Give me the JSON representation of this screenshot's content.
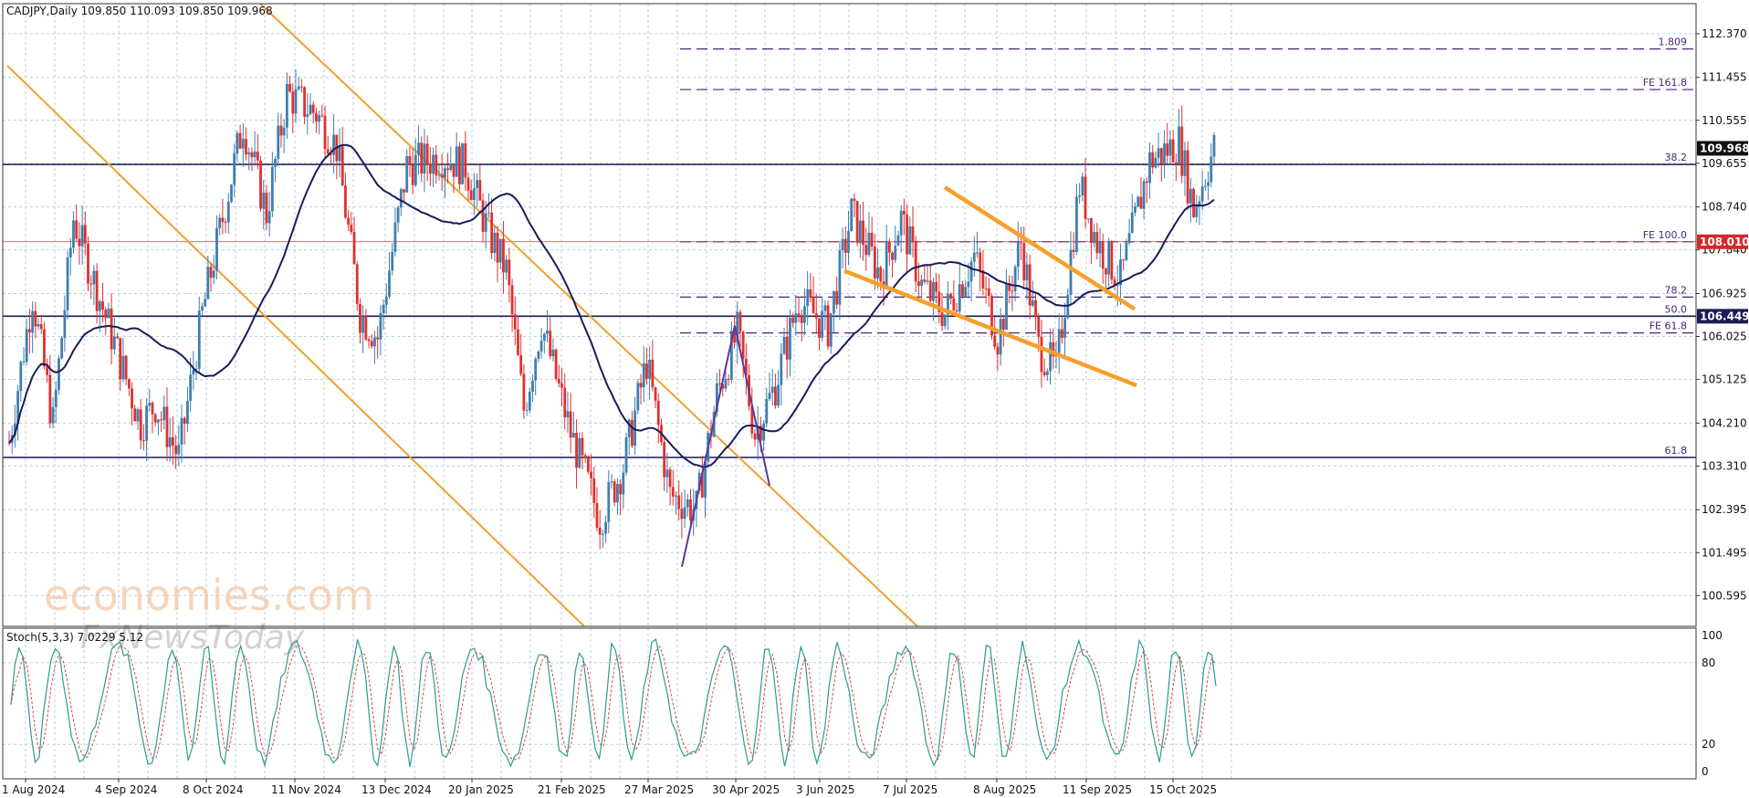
{
  "header": {
    "symbol_label": "CADJPY,Daily  109.850 110.093 109.850 109.968"
  },
  "indicator": {
    "label": "Stoch(5,3,3) 7.0229 5.12"
  },
  "watermark": {
    "brand": "economies.com",
    "sub": "FxNewsToday"
  },
  "colors": {
    "bull": "#3f7fae",
    "bear": "#e0302f",
    "ma": "#1d1b57",
    "channel": "#f0a030",
    "wedge": "#f5a02a",
    "fib": "#4a2573",
    "level": "#1a1a5a",
    "fe100_line": "#c84141",
    "grid": "#b8cfdd",
    "stoch_main": "#2e9b8e",
    "stoch_signal": "#d94848"
  },
  "chart_data": {
    "type": "candlestick",
    "symbol": "CADJPY",
    "timeframe": "Daily",
    "last_ohlc": {
      "open": 109.85,
      "high": 110.093,
      "low": 109.85,
      "close": 109.968
    },
    "ylim": [
      100.2,
      12.58
    ],
    "price_axis_ticks": [
      "112.370",
      "111.455",
      "110.555",
      "109.655",
      "108.740",
      "107.840",
      "106.925",
      "106.025",
      "105.125",
      "104.210",
      "103.310",
      "102.395",
      "101.495",
      "100.595"
    ],
    "time_axis_labels": [
      "1 Aug 2024",
      "4 Sep 2024",
      "8 Oct 2024",
      "11 Nov 2024",
      "13 Dec 2024",
      "20 Jan 2025",
      "21 Feb 2025",
      "27 Mar 2025",
      "30 Apr 2025",
      "3 Jun 2025",
      "7 Jul 2025",
      "8 Aug 2025",
      "11 Sep 2025",
      "15 Oct 2025"
    ],
    "price_tags": [
      {
        "label": "109.968",
        "value": 109.968,
        "style": "dark"
      },
      {
        "label": "108.010",
        "value": 108.01,
        "style": "red"
      },
      {
        "label": "106.449",
        "value": 106.449,
        "style": "navy"
      }
    ],
    "horizontal_levels": [
      {
        "value": 109.63,
        "label": "38.2",
        "style": "solid"
      },
      {
        "value": 106.449,
        "label": "50.0",
        "style": "solid"
      },
      {
        "value": 103.49,
        "label": "61.8",
        "style": "solid"
      }
    ],
    "fib_levels": [
      {
        "value": 112.05,
        "label": "1.809",
        "style": "dashed"
      },
      {
        "value": 111.2,
        "label": "FE 161.8",
        "style": "dashed"
      },
      {
        "value": 108.01,
        "label": "FE 100.0",
        "style": "dashed"
      },
      {
        "value": 106.85,
        "label": "78.2",
        "style": "dashed"
      },
      {
        "value": 106.1,
        "label": "FE 61.8",
        "style": "dashed"
      }
    ],
    "stochastic": {
      "params": "5,3,3",
      "ylim": [
        0,
        100
      ],
      "ticks": [
        "100",
        "80",
        "20",
        "0"
      ],
      "levels": [
        80,
        20
      ]
    }
  }
}
